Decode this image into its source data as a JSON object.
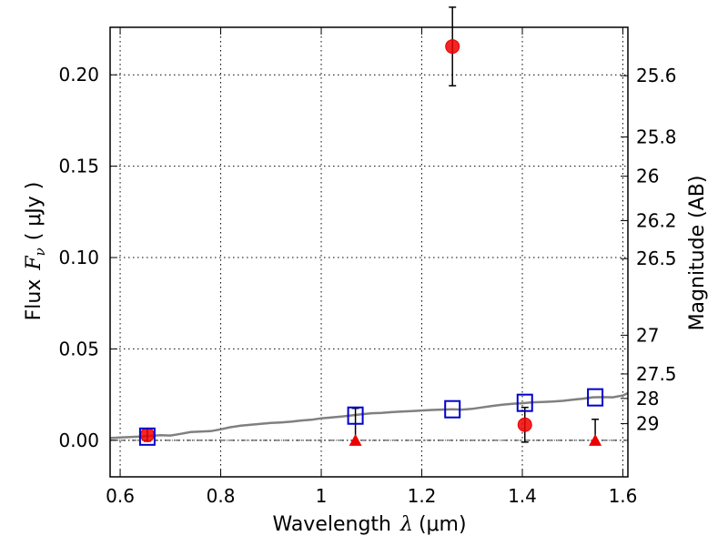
{
  "chart_data": {
    "type": "scatter",
    "xlabel_text": "Wavelength",
    "xlabel_symbol": "λ",
    "xlabel_unit": "(μm)",
    "ylabel_text": "Flux",
    "ylabel_symbol": "F",
    "ylabel_subscript": "ν",
    "ylabel_unit": "( μJy )",
    "y2label": "Magnitude (AB)",
    "xlim": [
      0.58,
      1.61
    ],
    "ylim": [
      -0.02,
      0.226
    ],
    "grid": true,
    "x_ticks": [
      {
        "value": 0.6,
        "label": "0.6"
      },
      {
        "value": 0.8,
        "label": "0.8"
      },
      {
        "value": 1.0,
        "label": "1"
      },
      {
        "value": 1.2,
        "label": "1.2"
      },
      {
        "value": 1.4,
        "label": "1.4"
      },
      {
        "value": 1.6,
        "label": "1.6"
      }
    ],
    "y_ticks": [
      {
        "value": 0.0,
        "label": "0.00"
      },
      {
        "value": 0.05,
        "label": "0.05"
      },
      {
        "value": 0.1,
        "label": "0.10"
      },
      {
        "value": 0.15,
        "label": "0.15"
      },
      {
        "value": 0.2,
        "label": "0.20"
      }
    ],
    "y2_ticks": [
      {
        "flux": 0.1995,
        "label": "25.6"
      },
      {
        "flux": 0.166,
        "label": "25.8"
      },
      {
        "flux": 0.1445,
        "label": "26"
      },
      {
        "flux": 0.1202,
        "label": "26.2"
      },
      {
        "flux": 0.0994,
        "label": "26.5"
      },
      {
        "flux": 0.0575,
        "label": "27"
      },
      {
        "flux": 0.0363,
        "label": "27.5"
      },
      {
        "flux": 0.0229,
        "label": "28"
      },
      {
        "flux": 0.0091,
        "label": "29"
      }
    ],
    "series": [
      {
        "kind": "model_spectrum",
        "color": "#808080",
        "x": [
          0.58,
          0.6,
          0.62,
          0.64,
          0.66,
          0.68,
          0.7,
          0.72,
          0.74,
          0.76,
          0.78,
          0.8,
          0.82,
          0.84,
          0.86,
          0.88,
          0.9,
          0.92,
          0.94,
          0.96,
          0.98,
          1.0,
          1.02,
          1.04,
          1.06,
          1.08,
          1.1,
          1.12,
          1.14,
          1.16,
          1.18,
          1.2,
          1.22,
          1.24,
          1.26,
          1.28,
          1.3,
          1.32,
          1.34,
          1.36,
          1.38,
          1.4,
          1.42,
          1.44,
          1.46,
          1.48,
          1.5,
          1.52,
          1.54,
          1.56,
          1.58,
          1.6,
          1.61
        ],
        "y": [
          0.0012,
          0.0015,
          0.0018,
          0.002,
          0.0024,
          0.0028,
          0.0026,
          0.0035,
          0.0045,
          0.0048,
          0.005,
          0.006,
          0.0072,
          0.008,
          0.0085,
          0.009,
          0.0095,
          0.0098,
          0.0102,
          0.0108,
          0.0112,
          0.012,
          0.0125,
          0.013,
          0.0136,
          0.0142,
          0.0148,
          0.015,
          0.0154,
          0.0157,
          0.016,
          0.0163,
          0.0166,
          0.0168,
          0.017,
          0.0168,
          0.0172,
          0.018,
          0.0188,
          0.0195,
          0.02,
          0.0203,
          0.0208,
          0.021,
          0.0212,
          0.0216,
          0.0222,
          0.0228,
          0.0235,
          0.0236,
          0.0235,
          0.0245,
          0.0258
        ]
      },
      {
        "kind": "model_photometry",
        "marker": "square",
        "color": "#0000cc",
        "x": [
          0.654,
          1.068,
          1.261,
          1.405,
          1.545
        ],
        "y": [
          0.002,
          0.0135,
          0.017,
          0.0205,
          0.0235
        ]
      },
      {
        "kind": "observed_detections",
        "marker": "circle",
        "color": "#ee0000",
        "x": [
          0.654,
          1.261,
          1.405
        ],
        "y": [
          0.003,
          0.2155,
          0.0085
        ],
        "yerr_low": [
          0.0035,
          0.0215,
          0.0095
        ],
        "yerr_high": [
          0.0035,
          0.0215,
          0.0095
        ]
      },
      {
        "kind": "observed_upper_limits",
        "marker": "triangle",
        "color": "#ee0000",
        "x": [
          1.068,
          1.545
        ],
        "y": [
          0.0,
          0.0
        ],
        "err_top": [
          0.0175,
          0.0115
        ]
      }
    ],
    "zero_line": true
  }
}
